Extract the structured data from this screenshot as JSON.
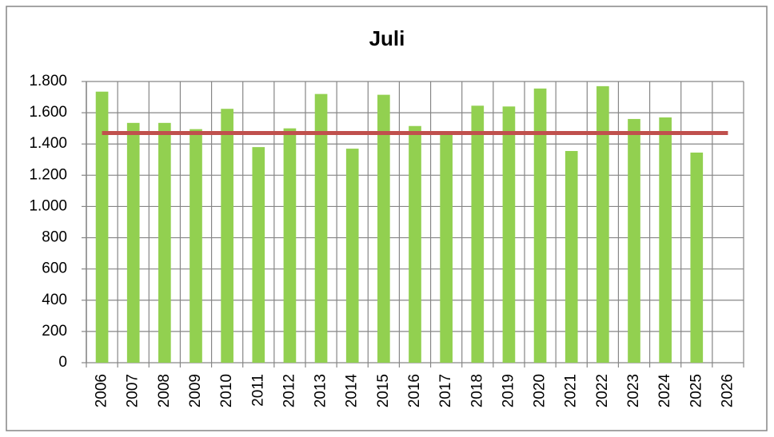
{
  "chart_data": {
    "type": "bar",
    "title": "Juli",
    "categories": [
      "2006",
      "2007",
      "2008",
      "2009",
      "2010",
      "2011",
      "2012",
      "2013",
      "2014",
      "2015",
      "2016",
      "2017",
      "2018",
      "2019",
      "2020",
      "2021",
      "2022",
      "2023",
      "2024",
      "2025",
      "2026"
    ],
    "series": [
      {
        "type": "bar",
        "color": "#92d050",
        "values": [
          1735,
          1535,
          1535,
          1495,
          1625,
          1380,
          1500,
          1720,
          1370,
          1715,
          1515,
          1465,
          1645,
          1640,
          1755,
          1355,
          1770,
          1560,
          1570,
          1345,
          null
        ]
      },
      {
        "type": "line",
        "color": "#c0504d",
        "values": [
          1470,
          1470,
          1470,
          1470,
          1470,
          1470,
          1470,
          1470,
          1470,
          1470,
          1470,
          1470,
          1470,
          1470,
          1470,
          1470,
          1470,
          1470,
          1470,
          1470,
          1470
        ]
      }
    ],
    "ylim": [
      0,
      1800
    ],
    "yticks": [
      0,
      200,
      400,
      600,
      800,
      {
        "value": 1000,
        "label": "1.000"
      },
      {
        "value": 1200,
        "label": "1.200"
      },
      {
        "value": 1400,
        "label": "1.400"
      },
      {
        "value": 1600,
        "label": "1.600"
      },
      {
        "value": 1800,
        "label": "1.800"
      }
    ],
    "grid": true
  }
}
